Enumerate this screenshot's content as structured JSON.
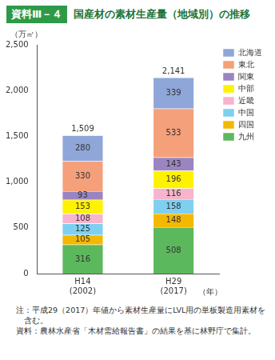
{
  "header_label": "資料Ⅲ－４",
  "chart_data": {
    "type": "bar",
    "title": "国産材の素材生産量（地域別）の推移",
    "ylabel": "（万㎥）",
    "xlabel": "（年）",
    "categories": [
      "H14\n(2002)",
      "H29\n(2017)"
    ],
    "series": [
      {
        "name": "九州",
        "color": "#5cb85c",
        "values": [
          316,
          508
        ]
      },
      {
        "name": "四国",
        "color": "#f5b800",
        "values": [
          105,
          148
        ]
      },
      {
        "name": "中国",
        "color": "#7fd0f0",
        "values": [
          125,
          158
        ]
      },
      {
        "name": "近畿",
        "color": "#f7b4cc",
        "values": [
          108,
          116
        ]
      },
      {
        "name": "中部",
        "color": "#fff200",
        "values": [
          153,
          196
        ]
      },
      {
        "name": "関東",
        "color": "#9b85c0",
        "values": [
          93,
          143
        ]
      },
      {
        "name": "東北",
        "color": "#f4a07a",
        "values": [
          330,
          533
        ]
      },
      {
        "name": "北海道",
        "color": "#8fa7d8",
        "values": [
          280,
          339
        ]
      }
    ],
    "totals": [
      1509,
      2141
    ],
    "total_labels": [
      "1,509",
      "2,141"
    ],
    "ylim": [
      0,
      2500
    ],
    "yticks": [
      0,
      500,
      {
        "value": 1000,
        "label": "1,000"
      },
      {
        "value": 1500,
        "label": "1,500"
      },
      {
        "value": 2000,
        "label": "2,000"
      },
      {
        "value": 2500,
        "label": "2,500"
      }
    ],
    "stacked": true,
    "data_labels": true,
    "grid": false,
    "legend": "right"
  },
  "notes": [
    "注：平成29（2017）年値から素材生産量にLVL用の単板製造用素材を含む。",
    "資料：農林水産省「木材需給報告書」の結果を基に林野庁で集計。"
  ]
}
